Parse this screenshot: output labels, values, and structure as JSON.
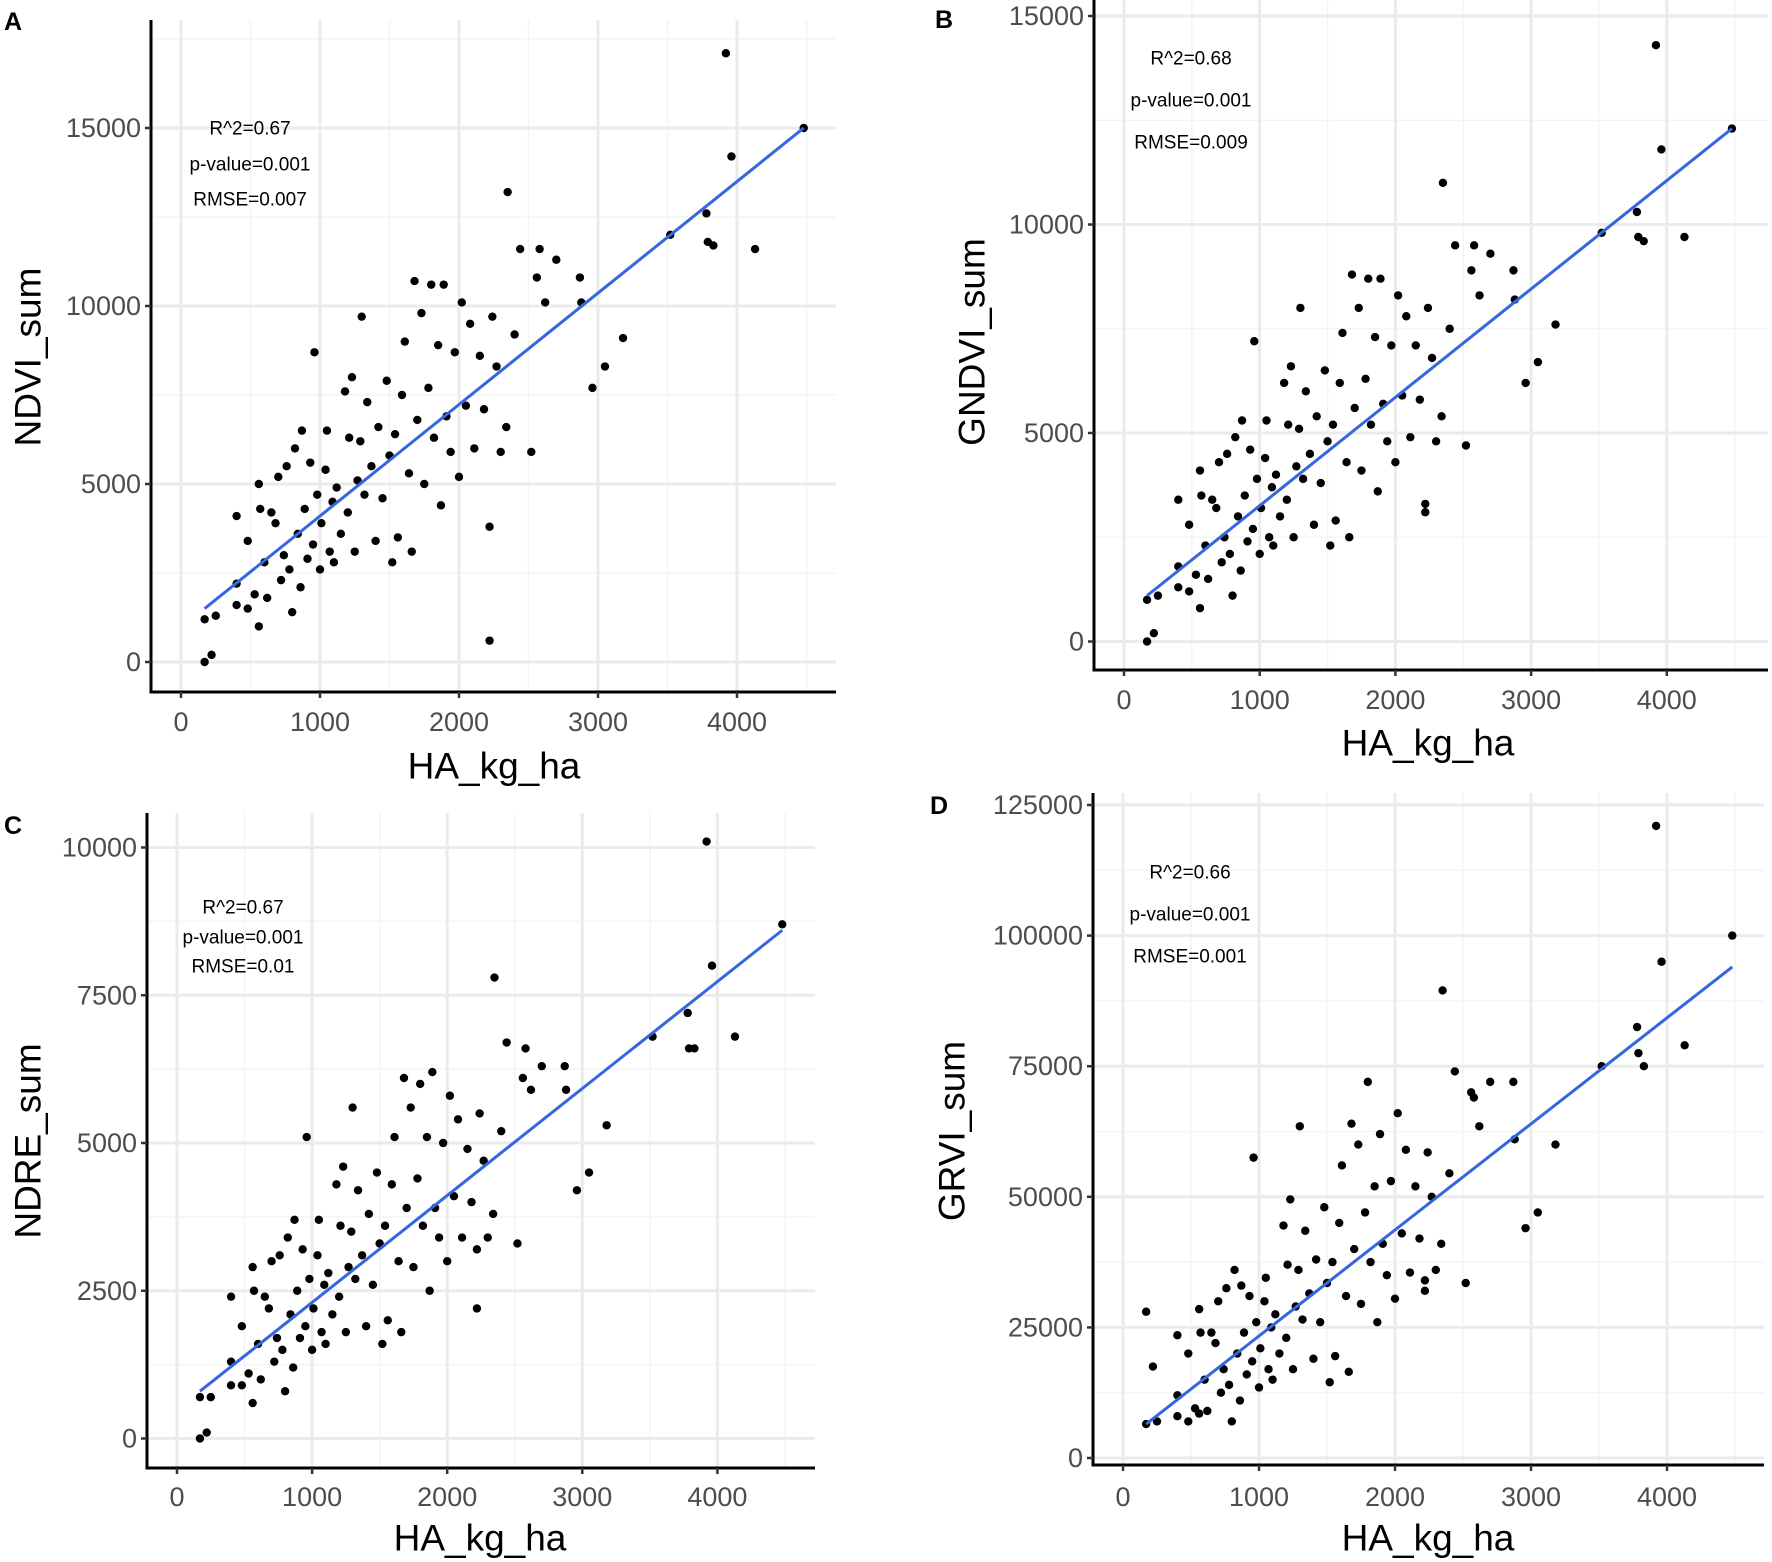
{
  "chart_data": [
    {
      "panel_label": "A",
      "type": "scatter",
      "title": "",
      "xlabel": "HA_kg_ha",
      "ylabel": "NDVI_sum",
      "x_ticks": [
        "0",
        "1000",
        "2000",
        "3000",
        "4000"
      ],
      "y_ticks": [
        "0",
        "5000",
        "10000",
        "15000"
      ],
      "xlim": [
        -250,
        4680
      ],
      "ylim": [
        -900,
        18000
      ],
      "grid": true,
      "annotations": [
        "R^2=0.67",
        "p-value=0.001",
        "RMSE=0.007"
      ],
      "fit_line": {
        "x": [
          170,
          4480
        ],
        "y": [
          1500,
          15000
        ]
      },
      "x": [
        170,
        220,
        170,
        250,
        400,
        400,
        400,
        480,
        480,
        530,
        560,
        560,
        570,
        600,
        620,
        650,
        680,
        700,
        720,
        740,
        760,
        780,
        800,
        820,
        840,
        860,
        870,
        890,
        910,
        930,
        950,
        960,
        980,
        1000,
        1010,
        1040,
        1050,
        1070,
        1090,
        1100,
        1120,
        1150,
        1180,
        1200,
        1210,
        1230,
        1250,
        1270,
        1290,
        1300,
        1320,
        1340,
        1370,
        1400,
        1420,
        1450,
        1480,
        1500,
        1520,
        1540,
        1560,
        1590,
        1610,
        1640,
        1660,
        1680,
        1700,
        1730,
        1750,
        1780,
        1800,
        1820,
        1850,
        1870,
        1890,
        1910,
        1940,
        1970,
        2000,
        2020,
        2050,
        2080,
        2110,
        2150,
        2180,
        2220,
        2220,
        2240,
        2270,
        2300,
        2340,
        2350,
        2400,
        2440,
        2520,
        2560,
        2580,
        2620,
        2700,
        2870,
        2880,
        2960,
        3050,
        3180,
        3520,
        3780,
        3790,
        3830,
        3920,
        3960,
        4130,
        4480
      ],
      "y": [
        0,
        200,
        1200,
        1300,
        4100,
        1600,
        2200,
        3400,
        1500,
        1900,
        5000,
        1000,
        4300,
        2800,
        1800,
        4200,
        3900,
        5200,
        2300,
        3000,
        5500,
        2600,
        1400,
        6000,
        3600,
        2100,
        6500,
        4300,
        2900,
        5600,
        3300,
        8700,
        4700,
        2600,
        3900,
        5400,
        6500,
        3100,
        4500,
        2800,
        4900,
        3600,
        7600,
        4200,
        6300,
        8000,
        3100,
        5100,
        6200,
        9700,
        4700,
        7300,
        5500,
        3400,
        6600,
        4600,
        7900,
        5800,
        2800,
        6400,
        3500,
        7500,
        9000,
        5300,
        3100,
        10700,
        6800,
        9800,
        5000,
        7700,
        10600,
        6300,
        8900,
        4400,
        10600,
        6900,
        5900,
        8700,
        5200,
        10100,
        7200,
        9500,
        6000,
        8600,
        7100,
        600,
        3800,
        9700,
        8300,
        5900,
        6600,
        13200,
        9200,
        11600,
        5900,
        10800,
        11600,
        10100,
        11300,
        10800,
        10100,
        7700,
        8300,
        9100,
        12000,
        12600,
        11800,
        11700,
        17100,
        14200,
        11600,
        15000
      ]
    },
    {
      "panel_label": "B",
      "type": "scatter",
      "title": "",
      "xlabel": "HA_kg_ha",
      "ylabel": "GNDVI_sum",
      "x_ticks": [
        "0",
        "1000",
        "2000",
        "3000",
        "4000"
      ],
      "y_ticks": [
        "0",
        "5000",
        "10000",
        "15000"
      ],
      "xlim": [
        -220,
        4680
      ],
      "ylim": [
        -700,
        15400
      ],
      "grid": true,
      "annotations": [
        "R^2=0.68",
        "p-value=0.001",
        "RMSE=0.009"
      ],
      "fit_line": {
        "x": [
          170,
          4480
        ],
        "y": [
          1100,
          12300
        ]
      },
      "x": [
        170,
        220,
        170,
        250,
        400,
        400,
        400,
        480,
        480,
        530,
        560,
        560,
        570,
        600,
        620,
        650,
        680,
        700,
        720,
        740,
        760,
        780,
        800,
        820,
        840,
        860,
        870,
        890,
        910,
        930,
        950,
        960,
        980,
        1000,
        1010,
        1040,
        1050,
        1070,
        1090,
        1100,
        1120,
        1150,
        1180,
        1200,
        1210,
        1230,
        1250,
        1270,
        1290,
        1300,
        1320,
        1340,
        1370,
        1400,
        1420,
        1450,
        1480,
        1500,
        1520,
        1540,
        1560,
        1590,
        1610,
        1640,
        1660,
        1680,
        1700,
        1730,
        1750,
        1780,
        1800,
        1820,
        1850,
        1870,
        1890,
        1910,
        1940,
        1970,
        2000,
        2020,
        2050,
        2080,
        2110,
        2150,
        2180,
        2220,
        2220,
        2240,
        2270,
        2300,
        2340,
        2350,
        2400,
        2440,
        2520,
        2560,
        2580,
        2620,
        2700,
        2870,
        2880,
        2960,
        3050,
        3180,
        3520,
        3780,
        3790,
        3830,
        3920,
        3960,
        4130,
        4480
      ],
      "y": [
        0,
        200,
        1000,
        1100,
        3400,
        1300,
        1800,
        2800,
        1200,
        1600,
        4100,
        800,
        3500,
        2300,
        1500,
        3400,
        3200,
        4300,
        1900,
        2500,
        4500,
        2100,
        1100,
        4900,
        3000,
        1700,
        5300,
        3500,
        2400,
        4600,
        2700,
        7200,
        3900,
        2100,
        3200,
        4400,
        5300,
        2500,
        3700,
        2300,
        4000,
        3000,
        6200,
        3400,
        5200,
        6600,
        2500,
        4200,
        5100,
        8000,
        3900,
        6000,
        4500,
        2800,
        5400,
        3800,
        6500,
        4800,
        2300,
        5200,
        2900,
        6200,
        7400,
        4300,
        2500,
        8800,
        5600,
        8000,
        4100,
        6300,
        8700,
        5200,
        7300,
        3600,
        8700,
        5700,
        4800,
        7100,
        4300,
        8300,
        5900,
        7800,
        4900,
        7100,
        5800,
        3300,
        3100,
        8000,
        6800,
        4800,
        5400,
        11000,
        7500,
        9500,
        4700,
        8900,
        9500,
        8300,
        9300,
        8900,
        8200,
        6200,
        6700,
        7600,
        9800,
        10300,
        9700,
        9600,
        14300,
        11800,
        9700,
        12300
      ]
    },
    {
      "panel_label": "C",
      "type": "scatter",
      "title": "",
      "xlabel": "HA_kg_ha",
      "ylabel": "NDRE_sum",
      "x_ticks": [
        "0",
        "1000",
        "2000",
        "3000",
        "4000"
      ],
      "y_ticks": [
        "0",
        "2500",
        "5000",
        "7500",
        "10000"
      ],
      "xlim": [
        -220,
        4680
      ],
      "ylim": [
        -500,
        10600
      ],
      "grid": true,
      "annotations": [
        "R^2=0.67",
        "p-value=0.001",
        "RMSE=0.01"
      ],
      "fit_line": {
        "x": [
          170,
          4480
        ],
        "y": [
          800,
          8600
        ]
      },
      "x": [
        170,
        220,
        170,
        250,
        400,
        400,
        400,
        480,
        480,
        530,
        560,
        560,
        570,
        600,
        620,
        650,
        680,
        700,
        720,
        740,
        760,
        780,
        800,
        820,
        840,
        860,
        870,
        890,
        910,
        930,
        950,
        960,
        980,
        1000,
        1010,
        1040,
        1050,
        1070,
        1090,
        1100,
        1120,
        1150,
        1180,
        1200,
        1210,
        1230,
        1250,
        1270,
        1290,
        1300,
        1320,
        1340,
        1370,
        1400,
        1420,
        1450,
        1480,
        1500,
        1520,
        1540,
        1560,
        1590,
        1610,
        1640,
        1660,
        1680,
        1700,
        1730,
        1750,
        1780,
        1800,
        1820,
        1850,
        1870,
        1890,
        1910,
        1940,
        1970,
        2000,
        2020,
        2050,
        2080,
        2110,
        2150,
        2180,
        2220,
        2220,
        2240,
        2270,
        2300,
        2340,
        2350,
        2400,
        2440,
        2520,
        2560,
        2580,
        2620,
        2700,
        2870,
        2880,
        2960,
        3050,
        3180,
        3520,
        3780,
        3790,
        3830,
        3920,
        3960,
        4130,
        4480
      ],
      "y": [
        0,
        100,
        700,
        700,
        2400,
        900,
        1300,
        1900,
        900,
        1100,
        2900,
        600,
        2500,
        1600,
        1000,
        2400,
        2200,
        3000,
        1300,
        1700,
        3100,
        1500,
        800,
        3400,
        2100,
        1200,
        3700,
        2500,
        1700,
        3200,
        1900,
        5100,
        2700,
        1500,
        2200,
        3100,
        3700,
        1800,
        2600,
        1600,
        2800,
        2100,
        4300,
        2400,
        3600,
        4600,
        1800,
        2900,
        3500,
        5600,
        2700,
        4200,
        3100,
        1900,
        3800,
        2600,
        4500,
        3300,
        1600,
        3600,
        2000,
        4300,
        5100,
        3000,
        1800,
        6100,
        3900,
        5600,
        2900,
        4400,
        6000,
        3600,
        5100,
        2500,
        6200,
        3900,
        3400,
        5000,
        3000,
        5800,
        4100,
        5400,
        3400,
        4900,
        4000,
        3200,
        2200,
        5500,
        4700,
        3400,
        3800,
        7800,
        5200,
        6700,
        3300,
        6100,
        6600,
        5900,
        6300,
        6300,
        5900,
        4200,
        4500,
        5300,
        6800,
        7200,
        6600,
        6600,
        10100,
        8000,
        6800,
        8700
      ]
    },
    {
      "panel_label": "D",
      "type": "scatter",
      "title": "",
      "xlabel": "HA_kg_ha",
      "ylabel": "GRVI_sum",
      "x_ticks": [
        "0",
        "1000",
        "2000",
        "3000",
        "4000"
      ],
      "y_ticks": [
        "0",
        "25000",
        "50000",
        "75000",
        "100000",
        "125000"
      ],
      "xlim": [
        -220,
        4680
      ],
      "ylim": [
        -1300,
        126000
      ],
      "grid": true,
      "annotations": [
        "R^2=0.66",
        "p-value=0.001",
        "RMSE=0.001"
      ],
      "fit_line": {
        "x": [
          170,
          4480
        ],
        "y": [
          6500,
          94000
        ]
      },
      "x": [
        170,
        220,
        170,
        250,
        400,
        400,
        400,
        480,
        480,
        530,
        560,
        560,
        570,
        600,
        620,
        650,
        680,
        700,
        720,
        740,
        760,
        780,
        800,
        820,
        840,
        860,
        870,
        890,
        910,
        930,
        950,
        960,
        980,
        1000,
        1010,
        1040,
        1050,
        1070,
        1090,
        1100,
        1120,
        1150,
        1180,
        1200,
        1210,
        1230,
        1250,
        1270,
        1290,
        1300,
        1320,
        1340,
        1370,
        1400,
        1420,
        1450,
        1480,
        1500,
        1520,
        1540,
        1560,
        1590,
        1610,
        1640,
        1660,
        1680,
        1700,
        1730,
        1750,
        1780,
        1800,
        1820,
        1850,
        1870,
        1890,
        1910,
        1940,
        1970,
        2000,
        2020,
        2050,
        2080,
        2110,
        2150,
        2180,
        2220,
        2220,
        2240,
        2270,
        2300,
        2340,
        2350,
        2400,
        2440,
        2520,
        2560,
        2580,
        2620,
        2700,
        2870,
        2880,
        2960,
        3050,
        3180,
        3520,
        3780,
        3790,
        3830,
        3920,
        3960,
        4130,
        4480
      ],
      "y": [
        6500,
        17500,
        28000,
        7000,
        23500,
        8000,
        12000,
        20000,
        7000,
        9500,
        28500,
        8500,
        24000,
        15000,
        9000,
        24000,
        22000,
        30000,
        12500,
        17000,
        32500,
        14000,
        7000,
        36000,
        20000,
        11000,
        33000,
        24000,
        16000,
        31000,
        18500,
        57500,
        26000,
        13500,
        21000,
        30000,
        34500,
        17000,
        25000,
        15000,
        27500,
        20000,
        44500,
        23000,
        37000,
        49500,
        17000,
        29000,
        36000,
        63500,
        26500,
        43500,
        31500,
        19000,
        38000,
        26000,
        48000,
        33500,
        14500,
        37500,
        19500,
        45000,
        56000,
        31000,
        16500,
        64000,
        40000,
        60000,
        29500,
        47000,
        72000,
        37500,
        52000,
        26000,
        62000,
        41000,
        35000,
        53000,
        30500,
        66000,
        43000,
        59000,
        35500,
        52000,
        42000,
        34000,
        32000,
        58500,
        50000,
        36000,
        41000,
        89500,
        54500,
        74000,
        33500,
        70000,
        69000,
        63500,
        72000,
        72000,
        61000,
        44000,
        47000,
        60000,
        75000,
        82500,
        77500,
        75000,
        121000,
        95000,
        79000,
        100000
      ]
    }
  ],
  "colors": {
    "points": "#000000",
    "fit_line": "#3366e0",
    "grid_major": "#ebebeb",
    "grid_minor": "#f4f4f4",
    "axis": "#000000",
    "tick_label": "#4d4d4d"
  }
}
